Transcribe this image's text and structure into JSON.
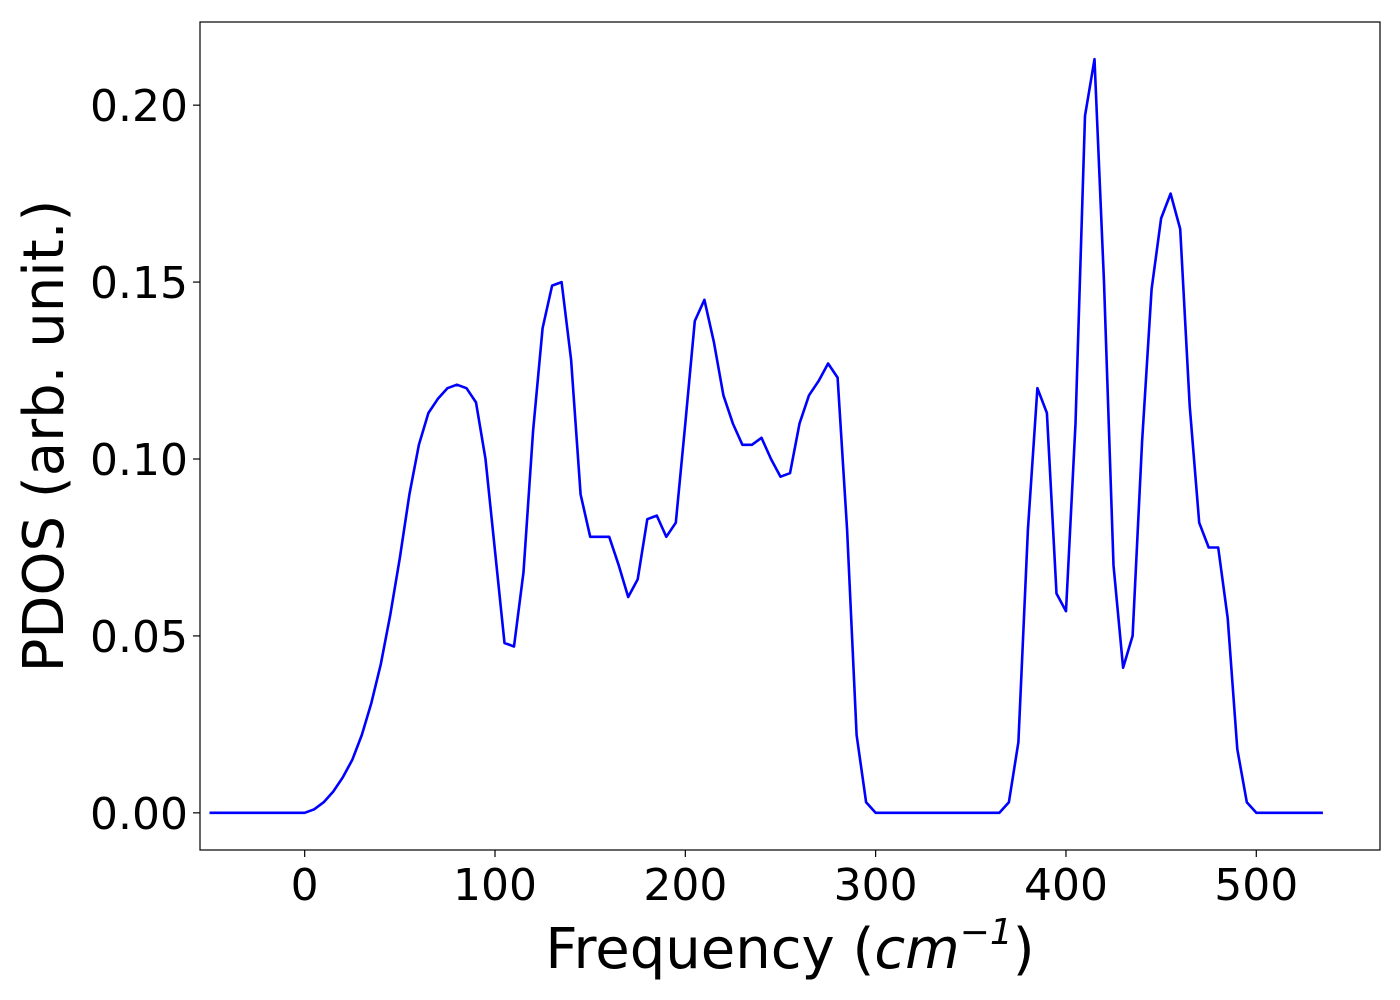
{
  "chart_data": {
    "type": "line",
    "xlabel": "Frequency (cm⁻¹)",
    "xlabel_parts": {
      "prefix": "Frequency (",
      "unit": "cm",
      "exponent": "−1",
      "suffix": ")"
    },
    "ylabel": "PDOS (arb. unit.)",
    "xlim": [
      -55,
      565
    ],
    "ylim": [
      -0.0105,
      0.2235
    ],
    "x_ticks": [
      0,
      100,
      200,
      300,
      400,
      500
    ],
    "x_tick_labels": [
      "0",
      "100",
      "200",
      "300",
      "400",
      "500"
    ],
    "y_ticks": [
      0.0,
      0.05,
      0.1,
      0.15,
      0.2
    ],
    "y_tick_labels": [
      "0.00",
      "0.05",
      "0.10",
      "0.15",
      "0.20"
    ],
    "grid": false,
    "series": [
      {
        "color": "#0000ff",
        "x": [
          -50,
          0,
          5,
          10,
          15,
          20,
          25,
          30,
          35,
          40,
          45,
          50,
          55,
          60,
          65,
          70,
          75,
          80,
          85,
          90,
          95,
          100,
          105,
          110,
          115,
          120,
          125,
          130,
          135,
          140,
          145,
          150,
          155,
          160,
          165,
          170,
          175,
          180,
          185,
          190,
          195,
          200,
          205,
          210,
          215,
          220,
          225,
          230,
          235,
          240,
          245,
          250,
          255,
          260,
          265,
          270,
          275,
          280,
          285,
          290,
          295,
          300,
          365,
          370,
          375,
          380,
          385,
          390,
          395,
          400,
          405,
          410,
          415,
          420,
          425,
          430,
          435,
          440,
          445,
          450,
          455,
          460,
          465,
          470,
          475,
          480,
          485,
          490,
          495,
          500,
          535
        ],
        "y": [
          0.0,
          0.0,
          0.001,
          0.003,
          0.006,
          0.01,
          0.015,
          0.022,
          0.031,
          0.042,
          0.056,
          0.072,
          0.09,
          0.104,
          0.113,
          0.117,
          0.12,
          0.121,
          0.12,
          0.116,
          0.1,
          0.074,
          0.048,
          0.047,
          0.068,
          0.108,
          0.137,
          0.149,
          0.15,
          0.128,
          0.09,
          0.078,
          0.078,
          0.078,
          0.07,
          0.061,
          0.066,
          0.083,
          0.084,
          0.078,
          0.082,
          0.11,
          0.139,
          0.145,
          0.133,
          0.118,
          0.11,
          0.104,
          0.104,
          0.106,
          0.1,
          0.095,
          0.096,
          0.11,
          0.118,
          0.122,
          0.127,
          0.123,
          0.08,
          0.022,
          0.003,
          0.0,
          0.0,
          0.003,
          0.02,
          0.08,
          0.12,
          0.113,
          0.062,
          0.057,
          0.11,
          0.197,
          0.213,
          0.15,
          0.07,
          0.041,
          0.05,
          0.105,
          0.148,
          0.168,
          0.175,
          0.165,
          0.115,
          0.082,
          0.075,
          0.075,
          0.055,
          0.018,
          0.003,
          0.0,
          0.0
        ]
      }
    ]
  }
}
